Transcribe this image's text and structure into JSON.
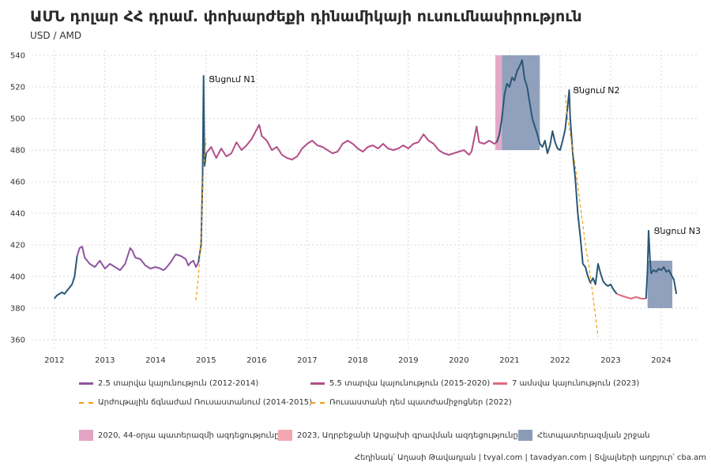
{
  "header": {
    "title": "ԱՄՆ դոլար ՀՀ դրամ. փոխարժեքի դինամիկայի ուսումնասիրություն",
    "subtitle": "USD / AMD"
  },
  "caption": "Հեղինակ՝ Աղասի Թավադյան   |   tvyal.com   |   tavadyan.com     |   Տվյալների աղբյուր՝ cba.am",
  "colors": {
    "shock": "#2a5777",
    "stable1": "#8e55a0",
    "stable2": "#b34f87",
    "stable3": "#e0697c",
    "dashed": "#f39c12",
    "rect_war": "#e3a4c3",
    "rect_azer": "#f4a7b0",
    "rect_post": "#8b9bb8"
  },
  "legend": {
    "lines": [
      {
        "label": "2.5 տարվա կայունություն (2012-2014)",
        "color": "#8e55a0",
        "style": "solid"
      },
      {
        "label": "5.5 տարվա կայունություն (2015-2020)",
        "color": "#b34f87",
        "style": "solid"
      },
      {
        "label": "7 ամսվա կայունություն (2023)",
        "color": "#e0697c",
        "style": "solid"
      },
      {
        "label": "Արժութային ճգնաժամ Ռուսաստանում (2014-2015)",
        "color": "#f39c12",
        "style": "dashed"
      },
      {
        "label": "Ռուսաստանի դեմ պատժամիջոցներ (2022)",
        "color": "#f39c12",
        "style": "dashed"
      }
    ],
    "boxes": [
      {
        "label": "2020, 44-օրյա պատերազմի ազդեցությունը",
        "color": "#e3a4c3"
      },
      {
        "label": "2023, Ադրբեջանի Արցախի գրավման ազդեցությունը",
        "color": "#f4a7b0"
      },
      {
        "label": "Հետպատերազմյան շրջան",
        "color": "#8b9bb8"
      }
    ]
  },
  "chart_data": {
    "type": "line",
    "title": "ԱՄՆ դոլար ՀՀ դրամ. փոխարժեքի դինամիկայի ուսումնասիրություն",
    "subtitle": "USD / AMD",
    "xlabel": "",
    "ylabel": "",
    "xlim": [
      2011.55,
      2024.75
    ],
    "ylim": [
      353,
      543
    ],
    "x_ticks": [
      "2012",
      "2013",
      "2014",
      "2015",
      "2016",
      "2017",
      "2018",
      "2019",
      "2020",
      "2021",
      "2022",
      "2023",
      "2024"
    ],
    "y_ticks": [
      360,
      380,
      400,
      420,
      440,
      460,
      480,
      500,
      520,
      540
    ],
    "grid": true,
    "legend_position": "bottom",
    "series": [
      {
        "name": "2.5 տարվա կայունություն (2012-2014)",
        "color": "#8e55a0",
        "x": [
          2012.45,
          2012.5,
          2012.55,
          2012.6,
          2012.7,
          2012.8,
          2012.9,
          2013.0,
          2013.1,
          2013.2,
          2013.3,
          2013.4,
          2013.5,
          2013.55,
          2013.6,
          2013.7,
          2013.8,
          2013.9,
          2014.0,
          2014.1,
          2014.15,
          2014.2,
          2014.3,
          2014.4,
          2014.5,
          2014.6,
          2014.65,
          2014.7,
          2014.75,
          2014.8,
          2014.85
        ],
        "y": [
          413,
          418,
          419,
          412,
          408,
          406,
          410,
          405,
          408,
          406,
          404,
          408,
          418,
          416,
          412,
          411,
          407,
          405,
          406,
          405,
          404,
          405,
          409,
          414,
          413,
          411,
          407,
          409,
          410,
          406,
          409
        ]
      },
      {
        "name": "5.5 տարվա կայունություն (2015-2020)",
        "color": "#b34f87",
        "x": [
          2015.0,
          2015.1,
          2015.2,
          2015.3,
          2015.4,
          2015.5,
          2015.6,
          2015.7,
          2015.8,
          2015.9,
          2016.0,
          2016.05,
          2016.1,
          2016.2,
          2016.3,
          2016.4,
          2016.5,
          2016.6,
          2016.7,
          2016.8,
          2016.9,
          2017.0,
          2017.1,
          2017.2,
          2017.3,
          2017.4,
          2017.5,
          2017.6,
          2017.7,
          2017.8,
          2017.9,
          2018.0,
          2018.1,
          2018.2,
          2018.3,
          2018.4,
          2018.5,
          2018.6,
          2018.7,
          2018.8,
          2018.9,
          2019.0,
          2019.1,
          2019.2,
          2019.3,
          2019.4,
          2019.5,
          2019.6,
          2019.7,
          2019.8,
          2019.9,
          2020.0,
          2020.1,
          2020.2,
          2020.25,
          2020.3,
          2020.35,
          2020.4,
          2020.5,
          2020.6,
          2020.7,
          2020.75
        ],
        "y": [
          478,
          482,
          475,
          481,
          476,
          478,
          485,
          480,
          483,
          487,
          493,
          496,
          489,
          486,
          480,
          482,
          477,
          475,
          474,
          476,
          481,
          484,
          486,
          483,
          482,
          480,
          478,
          479,
          484,
          486,
          484,
          481,
          479,
          482,
          483,
          481,
          484,
          481,
          480,
          481,
          483,
          481,
          484,
          485,
          490,
          486,
          484,
          480,
          478,
          477,
          478,
          479,
          480,
          477,
          479,
          487,
          495,
          485,
          484,
          486,
          484,
          485
        ]
      },
      {
        "name": "7 ամսվա կայունություն (2023)",
        "color": "#e0697c",
        "x": [
          2023.12,
          2023.2,
          2023.3,
          2023.4,
          2023.5,
          2023.6,
          2023.7
        ],
        "y": [
          389,
          388,
          387,
          386,
          387,
          386,
          386
        ]
      },
      {
        "name": "",
        "color": "#2a5777",
        "x": [
          2012.0,
          2012.05,
          2012.1,
          2012.15,
          2012.2,
          2012.25,
          2012.3,
          2012.35,
          2012.4,
          2012.45
        ],
        "y": [
          386,
          388,
          389,
          390,
          389,
          391,
          393,
          395,
          400,
          413
        ]
      },
      {
        "name": "",
        "color": "#2a5777",
        "x": [
          2014.85,
          2014.9,
          2014.93,
          2014.95,
          2014.97,
          2015.0
        ],
        "y": [
          409,
          420,
          460,
          527,
          470,
          478
        ]
      },
      {
        "name": "",
        "color": "#2a5777",
        "x": [
          2020.75,
          2020.8,
          2020.85,
          2020.9,
          2020.95,
          2021.0,
          2021.05,
          2021.1,
          2021.15,
          2021.2,
          2021.25,
          2021.3,
          2021.35,
          2021.4,
          2021.45,
          2021.5,
          2021.55,
          2021.6,
          2021.65,
          2021.7,
          2021.75,
          2021.8,
          2021.85,
          2021.9,
          2021.95,
          2022.0,
          2022.05,
          2022.1,
          2022.15,
          2022.18,
          2022.2,
          2022.25,
          2022.3,
          2022.35,
          2022.4,
          2022.45,
          2022.5,
          2022.55,
          2022.6,
          2022.65,
          2022.7,
          2022.75,
          2022.8,
          2022.85,
          2022.9,
          2022.95,
          2023.0,
          2023.05,
          2023.12
        ],
        "y": [
          485,
          490,
          500,
          515,
          522,
          520,
          526,
          524,
          530,
          533,
          537,
          525,
          520,
          510,
          500,
          495,
          490,
          484,
          482,
          486,
          478,
          483,
          492,
          485,
          481,
          480,
          486,
          493,
          508,
          518,
          500,
          478,
          462,
          440,
          425,
          408,
          406,
          400,
          396,
          399,
          395,
          408,
          402,
          397,
          395,
          394,
          395,
          392,
          389
        ]
      },
      {
        "name": "",
        "color": "#2a5777",
        "x": [
          2023.7,
          2023.73,
          2023.75,
          2023.78,
          2023.8,
          2023.85,
          2023.9,
          2023.95,
          2024.0,
          2024.05,
          2024.1,
          2024.15,
          2024.2,
          2024.25,
          2024.3
        ],
        "y": [
          386,
          405,
          429,
          410,
          402,
          404,
          403,
          405,
          404,
          406,
          403,
          404,
          401,
          398,
          389
        ]
      },
      {
        "name": "Արժութային ճգնաժամ Ռուսաստանում (2014-2015)",
        "color": "#f39c12",
        "dashed": true,
        "x": [
          2014.8,
          2014.85,
          2014.9,
          2014.95,
          2015.0
        ],
        "y": [
          385,
          400,
          425,
          470,
          487
        ]
      },
      {
        "name": "Ռուսաստանի դեմ պատժամիջոցներ (2022)",
        "color": "#f39c12",
        "dashed": true,
        "x": [
          2022.1,
          2022.15,
          2022.2,
          2022.3,
          2022.4,
          2022.5,
          2022.6,
          2022.7,
          2022.75
        ],
        "y": [
          515,
          500,
          490,
          470,
          445,
          420,
          400,
          375,
          362
        ]
      }
    ],
    "shaded_regions": [
      {
        "name": "2020, 44-օրյա պատերազմի ազդեցությունը",
        "x": [
          2020.72,
          2020.85
        ],
        "y": [
          480,
          540
        ],
        "color": "#e3a4c3"
      },
      {
        "name": "Հետպատերազմյան շրջան",
        "x": [
          2020.85,
          2021.6
        ],
        "y": [
          480,
          540
        ],
        "color": "#8b9bb8"
      },
      {
        "name": "Հետպատերազմյան շրջան",
        "x": [
          2023.73,
          2024.22
        ],
        "y": [
          380,
          410
        ],
        "color": "#8b9bb8"
      }
    ],
    "annotations": [
      {
        "text": "Ցնցում N1",
        "x": 2015.05,
        "y": 525
      },
      {
        "text": "Ցնցում N2",
        "x": 2022.25,
        "y": 518
      },
      {
        "text": "Ցնցում N3",
        "x": 2023.85,
        "y": 429
      }
    ]
  }
}
